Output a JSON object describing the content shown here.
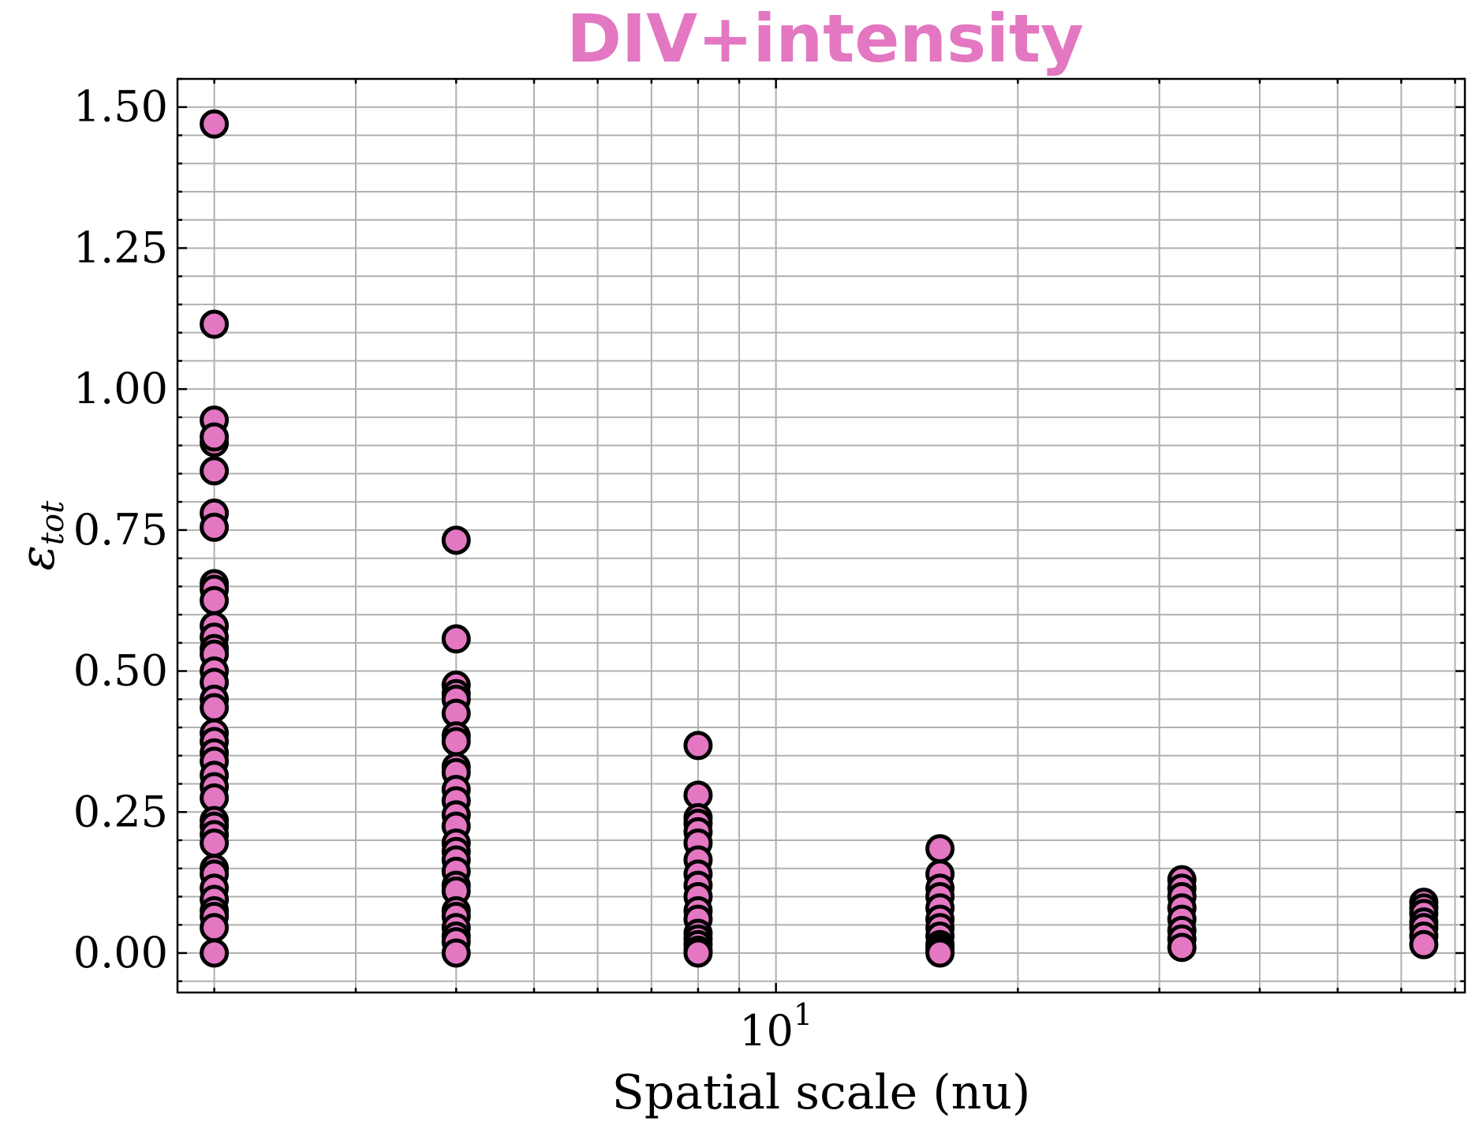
{
  "chart_data": {
    "type": "scatter",
    "title": "DIV+intensity",
    "title_color": "#e377c2",
    "xlabel": "Spatial scale (nu)",
    "ylabel": "ε",
    "ylabel_sub": "tot",
    "xscale": "log",
    "x_major_ticks": [
      10
    ],
    "x_tick_labels": [
      {
        "base": "10",
        "exp": "1"
      }
    ],
    "x_minor_ticks": [
      2,
      3,
      4,
      5,
      6,
      7,
      8,
      9,
      20,
      30,
      40,
      50,
      60,
      70
    ],
    "xlim": [
      1.8,
      72
    ],
    "ylim": [
      -0.07,
      1.55
    ],
    "y_major_ticks": [
      0.0,
      0.25,
      0.5,
      0.75,
      1.0,
      1.25,
      1.5
    ],
    "y_tick_labels": [
      "0.00",
      "0.25",
      "0.50",
      "0.75",
      "1.00",
      "1.25",
      "1.50"
    ],
    "grid": true,
    "marker_color": "#e377c2",
    "marker_edge": "#000000",
    "series": [
      {
        "points": [
          {
            "x": 2,
            "y": 1.47
          },
          {
            "x": 2,
            "y": 1.115
          },
          {
            "x": 2,
            "y": 0.945
          },
          {
            "x": 2,
            "y": 0.905
          },
          {
            "x": 2,
            "y": 0.915
          },
          {
            "x": 2,
            "y": 0.855
          },
          {
            "x": 2,
            "y": 0.78
          },
          {
            "x": 2,
            "y": 0.755
          },
          {
            "x": 2,
            "y": 0.655
          },
          {
            "x": 2,
            "y": 0.645
          },
          {
            "x": 2,
            "y": 0.625
          },
          {
            "x": 2,
            "y": 0.58
          },
          {
            "x": 2,
            "y": 0.56
          },
          {
            "x": 2,
            "y": 0.54
          },
          {
            "x": 2,
            "y": 0.53
          },
          {
            "x": 2,
            "y": 0.5
          },
          {
            "x": 2,
            "y": 0.48
          },
          {
            "x": 2,
            "y": 0.45
          },
          {
            "x": 2,
            "y": 0.435
          },
          {
            "x": 2,
            "y": 0.39
          },
          {
            "x": 2,
            "y": 0.375
          },
          {
            "x": 2,
            "y": 0.355
          },
          {
            "x": 2,
            "y": 0.34
          },
          {
            "x": 2,
            "y": 0.315
          },
          {
            "x": 2,
            "y": 0.295
          },
          {
            "x": 2,
            "y": 0.275
          },
          {
            "x": 2,
            "y": 0.235
          },
          {
            "x": 2,
            "y": 0.225
          },
          {
            "x": 2,
            "y": 0.21
          },
          {
            "x": 2,
            "y": 0.195
          },
          {
            "x": 2,
            "y": 0.15
          },
          {
            "x": 2,
            "y": 0.14
          },
          {
            "x": 2,
            "y": 0.115
          },
          {
            "x": 2,
            "y": 0.095
          },
          {
            "x": 2,
            "y": 0.075
          },
          {
            "x": 2,
            "y": 0.065
          },
          {
            "x": 2,
            "y": 0.045
          },
          {
            "x": 2,
            "y": 0.0
          },
          {
            "x": 4,
            "y": 0.732
          },
          {
            "x": 4,
            "y": 0.557
          },
          {
            "x": 4,
            "y": 0.475
          },
          {
            "x": 4,
            "y": 0.46
          },
          {
            "x": 4,
            "y": 0.45
          },
          {
            "x": 4,
            "y": 0.425
          },
          {
            "x": 4,
            "y": 0.385
          },
          {
            "x": 4,
            "y": 0.375
          },
          {
            "x": 4,
            "y": 0.33
          },
          {
            "x": 4,
            "y": 0.32
          },
          {
            "x": 4,
            "y": 0.29
          },
          {
            "x": 4,
            "y": 0.27
          },
          {
            "x": 4,
            "y": 0.245
          },
          {
            "x": 4,
            "y": 0.225
          },
          {
            "x": 4,
            "y": 0.195
          },
          {
            "x": 4,
            "y": 0.18
          },
          {
            "x": 4,
            "y": 0.165
          },
          {
            "x": 4,
            "y": 0.145
          },
          {
            "x": 4,
            "y": 0.12
          },
          {
            "x": 4,
            "y": 0.11
          },
          {
            "x": 4,
            "y": 0.075
          },
          {
            "x": 4,
            "y": 0.065
          },
          {
            "x": 4,
            "y": 0.045
          },
          {
            "x": 4,
            "y": 0.03
          },
          {
            "x": 4,
            "y": 0.02
          },
          {
            "x": 4,
            "y": 0.0
          },
          {
            "x": 8,
            "y": 0.368
          },
          {
            "x": 8,
            "y": 0.28
          },
          {
            "x": 8,
            "y": 0.24
          },
          {
            "x": 8,
            "y": 0.23
          },
          {
            "x": 8,
            "y": 0.215
          },
          {
            "x": 8,
            "y": 0.195
          },
          {
            "x": 8,
            "y": 0.165
          },
          {
            "x": 8,
            "y": 0.14
          },
          {
            "x": 8,
            "y": 0.12
          },
          {
            "x": 8,
            "y": 0.1
          },
          {
            "x": 8,
            "y": 0.075
          },
          {
            "x": 8,
            "y": 0.06
          },
          {
            "x": 8,
            "y": 0.035
          },
          {
            "x": 8,
            "y": 0.025
          },
          {
            "x": 8,
            "y": 0.015
          },
          {
            "x": 8,
            "y": 0.005
          },
          {
            "x": 8,
            "y": 0.0
          },
          {
            "x": 16,
            "y": 0.185
          },
          {
            "x": 16,
            "y": 0.14
          },
          {
            "x": 16,
            "y": 0.115
          },
          {
            "x": 16,
            "y": 0.1
          },
          {
            "x": 16,
            "y": 0.08
          },
          {
            "x": 16,
            "y": 0.06
          },
          {
            "x": 16,
            "y": 0.045
          },
          {
            "x": 16,
            "y": 0.03
          },
          {
            "x": 16,
            "y": 0.015
          },
          {
            "x": 16,
            "y": 0.008
          },
          {
            "x": 16,
            "y": 0.003
          },
          {
            "x": 16,
            "y": 0.0
          },
          {
            "x": 32,
            "y": 0.13
          },
          {
            "x": 32,
            "y": 0.115
          },
          {
            "x": 32,
            "y": 0.1
          },
          {
            "x": 32,
            "y": 0.08
          },
          {
            "x": 32,
            "y": 0.06
          },
          {
            "x": 32,
            "y": 0.04
          },
          {
            "x": 32,
            "y": 0.025
          },
          {
            "x": 32,
            "y": 0.01
          },
          {
            "x": 64,
            "y": 0.09
          },
          {
            "x": 64,
            "y": 0.08
          },
          {
            "x": 64,
            "y": 0.07
          },
          {
            "x": 64,
            "y": 0.055
          },
          {
            "x": 64,
            "y": 0.045
          },
          {
            "x": 64,
            "y": 0.03
          },
          {
            "x": 64,
            "y": 0.015
          }
        ]
      }
    ]
  }
}
